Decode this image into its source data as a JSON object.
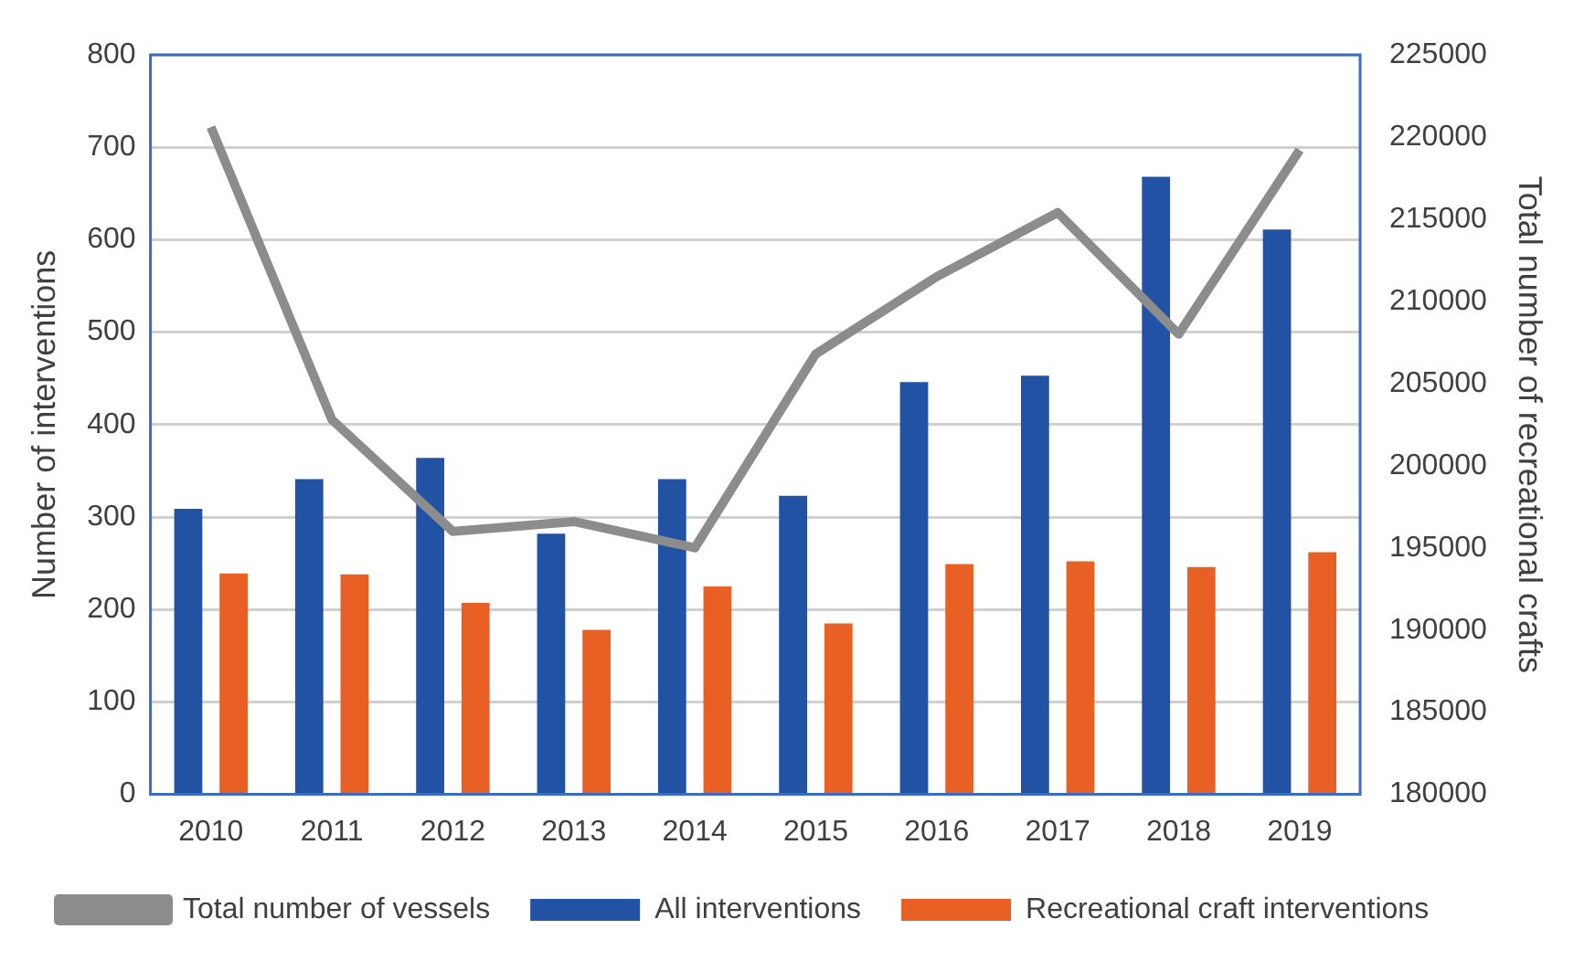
{
  "chart_data": {
    "type": "bar",
    "categories": [
      "2010",
      "2011",
      "2012",
      "2013",
      "2014",
      "2015",
      "2016",
      "2017",
      "2018",
      "2019"
    ],
    "ylabel": "Number of interventions",
    "y2label": "Total number of recreational crafts",
    "ylim": [
      0,
      800
    ],
    "yticks": [
      0,
      100,
      200,
      300,
      400,
      500,
      600,
      700,
      800
    ],
    "y2lim": [
      180000,
      225000
    ],
    "y2ticks": [
      180000,
      185000,
      190000,
      195000,
      200000,
      205000,
      210000,
      215000,
      220000,
      225000
    ],
    "grid": "y",
    "legend": "bottom",
    "series": [
      {
        "name": "All interventions",
        "color": "#2152a3",
        "values": [
          309,
          341,
          364,
          282,
          341,
          323,
          446,
          453,
          668,
          611
        ]
      },
      {
        "name": "Recreational craft interventions",
        "color": "#e86024",
        "values": [
          239,
          238,
          207,
          178,
          225,
          185,
          249,
          252,
          246,
          262
        ]
      },
      {
        "name": "Total number of vessels",
        "type": "line",
        "axis": "y2",
        "color": "#8c8c8c",
        "values": [
          220600,
          202800,
          196000,
          196600,
          195000,
          206800,
          211500,
          215400,
          208000,
          219200
        ]
      }
    ]
  }
}
